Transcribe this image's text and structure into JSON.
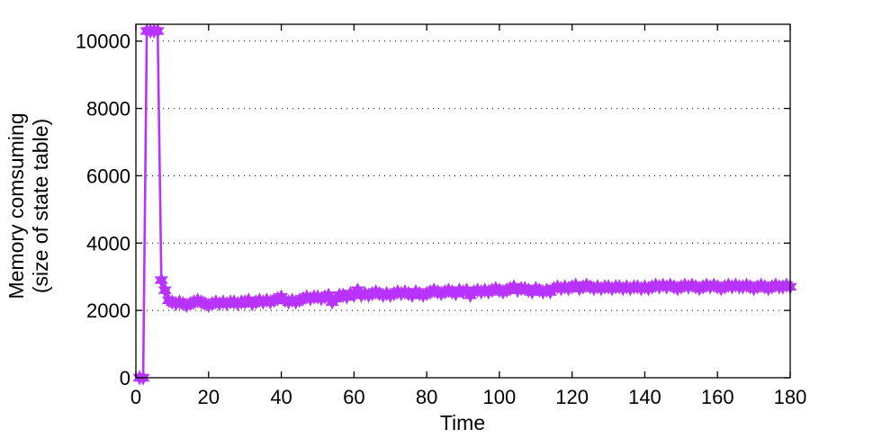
{
  "chart_data": {
    "type": "line",
    "title": "",
    "xlabel": "Time",
    "ylabel_lines": [
      "Memory comsuming",
      "(size of state table)"
    ],
    "xlim": [
      0,
      180
    ],
    "ylim": [
      0,
      10500
    ],
    "xticks": [
      0,
      20,
      40,
      60,
      80,
      100,
      120,
      140,
      160,
      180
    ],
    "yticks": [
      0,
      2000,
      4000,
      6000,
      8000,
      10000
    ],
    "xtick_labels": [
      "0",
      "20",
      "40",
      "60",
      "80",
      "100",
      "120",
      "140",
      "160",
      "180"
    ],
    "ytick_labels": [
      "0",
      "2000",
      "4000",
      "6000",
      "8000",
      "10000"
    ],
    "grid": "y-dotted",
    "legend": "none",
    "series": [
      {
        "color": "#b833ff",
        "marker": "hexagram-star",
        "x": [
          1,
          2,
          3,
          4,
          5,
          6,
          7,
          8,
          9,
          10,
          11,
          12,
          13,
          14,
          15,
          16,
          17,
          18,
          19,
          20,
          21,
          22,
          23,
          24,
          25,
          26,
          27,
          28,
          29,
          30,
          31,
          32,
          33,
          34,
          35,
          36,
          37,
          38,
          39,
          40,
          41,
          42,
          43,
          44,
          45,
          46,
          47,
          48,
          49,
          50,
          51,
          52,
          53,
          54,
          55,
          56,
          57,
          58,
          59,
          60,
          61,
          62,
          63,
          64,
          65,
          66,
          67,
          68,
          69,
          70,
          71,
          72,
          73,
          74,
          75,
          76,
          77,
          78,
          79,
          80,
          81,
          82,
          83,
          84,
          85,
          86,
          87,
          88,
          89,
          90,
          91,
          92,
          93,
          94,
          95,
          96,
          97,
          98,
          99,
          100,
          101,
          102,
          103,
          104,
          105,
          106,
          107,
          108,
          109,
          110,
          111,
          112,
          113,
          114,
          115,
          116,
          117,
          118,
          119,
          120,
          121,
          122,
          123,
          124,
          125,
          126,
          127,
          128,
          129,
          130,
          131,
          132,
          133,
          134,
          135,
          136,
          137,
          138,
          139,
          140,
          141,
          142,
          143,
          144,
          145,
          146,
          147,
          148,
          149,
          150,
          151,
          152,
          153,
          154,
          155,
          156,
          157,
          158,
          159,
          160,
          161,
          162,
          163,
          164,
          165,
          166,
          167,
          168,
          169,
          170,
          171,
          172,
          173,
          174,
          175,
          176,
          177,
          178,
          179,
          180
        ],
        "y": [
          0,
          0,
          10300,
          10300,
          10300,
          10300,
          2900,
          2600,
          2300,
          2250,
          2200,
          2250,
          2200,
          2150,
          2200,
          2250,
          2300,
          2250,
          2200,
          2150,
          2200,
          2250,
          2200,
          2250,
          2200,
          2250,
          2250,
          2200,
          2250,
          2250,
          2300,
          2200,
          2250,
          2300,
          2250,
          2300,
          2250,
          2300,
          2350,
          2400,
          2300,
          2250,
          2300,
          2250,
          2300,
          2350,
          2400,
          2350,
          2400,
          2400,
          2350,
          2400,
          2450,
          2250,
          2350,
          2450,
          2450,
          2400,
          2500,
          2450,
          2600,
          2450,
          2500,
          2450,
          2500,
          2550,
          2500,
          2450,
          2500,
          2450,
          2500,
          2550,
          2500,
          2550,
          2500,
          2450,
          2550,
          2500,
          2450,
          2500,
          2550,
          2600,
          2550,
          2500,
          2550,
          2600,
          2550,
          2500,
          2600,
          2550,
          2600,
          2450,
          2550,
          2600,
          2550,
          2600,
          2550,
          2600,
          2650,
          2600,
          2550,
          2600,
          2650,
          2700,
          2600,
          2650,
          2650,
          2600,
          2550,
          2650,
          2600,
          2550,
          2600,
          2550,
          2650,
          2700,
          2650,
          2700,
          2650,
          2700,
          2750,
          2650,
          2700,
          2750,
          2700,
          2650,
          2700,
          2650,
          2700,
          2700,
          2650,
          2700,
          2700,
          2650,
          2700,
          2650,
          2700,
          2700,
          2650,
          2700,
          2650,
          2700,
          2750,
          2700,
          2750,
          2700,
          2750,
          2700,
          2650,
          2700,
          2750,
          2700,
          2750,
          2700,
          2650,
          2700,
          2750,
          2700,
          2750,
          2700,
          2650,
          2700,
          2750,
          2700,
          2750,
          2700,
          2700,
          2750,
          2700,
          2650,
          2700,
          2750,
          2700,
          2650,
          2700,
          2750,
          2700,
          2700,
          2750,
          2700
        ]
      }
    ]
  }
}
